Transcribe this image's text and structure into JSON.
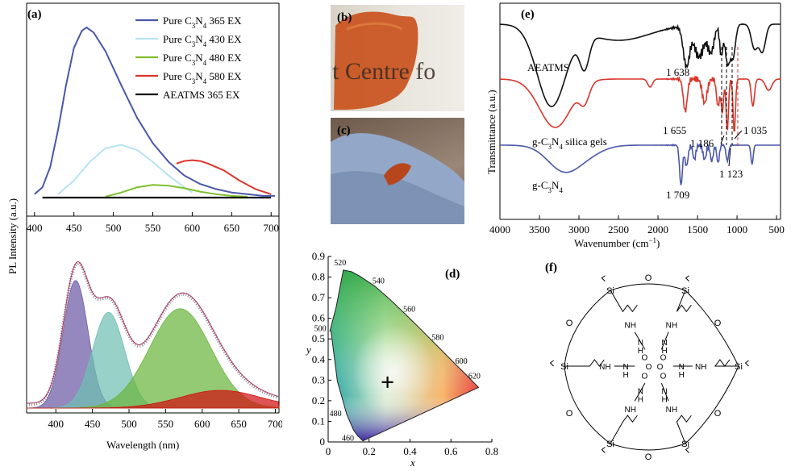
{
  "panel_labels": {
    "a": "(a)",
    "b": "(b)",
    "c": "(c)",
    "d": "(d)",
    "e": "(e)",
    "f": "(f)"
  },
  "colors": {
    "pure365": "#4a57a8",
    "pure430": "#b7e3f2",
    "pure480": "#7fbf2e",
    "pure580": "#d8362b",
    "aeatms": "#111111",
    "fit1": "#6b5aa6",
    "fit2": "#6fbfb3",
    "fit3": "#6ab53d",
    "fit4": "#d11010"
  },
  "photo_b_text": "t Centre fo",
  "chart_data": [
    {
      "id": "a-top",
      "type": "line",
      "ylabel": "PL Intensity (a.u.)",
      "xlim": [
        390,
        710
      ],
      "xticks": [
        "400",
        "450",
        "500",
        "550",
        "600",
        "650",
        "700"
      ],
      "legend_position": "top-right",
      "series": [
        {
          "name": "Pure C3N4 365 EX",
          "name_main": "Pure C",
          "name_sub1": "3",
          "name_mid": "N",
          "name_sub2": "4",
          "name_tail": " 365 EX",
          "color": "#4a57a8",
          "x": [
            400,
            410,
            420,
            430,
            440,
            450,
            460,
            466,
            475,
            490,
            510,
            530,
            550,
            570,
            590,
            610,
            630,
            650,
            670,
            690,
            705
          ],
          "y": [
            0.02,
            0.06,
            0.18,
            0.4,
            0.66,
            0.88,
            0.98,
            1.0,
            0.97,
            0.86,
            0.66,
            0.47,
            0.32,
            0.21,
            0.13,
            0.08,
            0.05,
            0.03,
            0.02,
            0.01,
            0.01
          ]
        },
        {
          "name": "Pure C3N4 430 EX",
          "name_main": "Pure C",
          "name_sub1": "3",
          "name_mid": "N",
          "name_sub2": "4",
          "name_tail": " 430 EX",
          "color": "#b7e3f2",
          "x": [
            430,
            450,
            470,
            490,
            510,
            530,
            550,
            570,
            590,
            600
          ],
          "y": [
            0.02,
            0.1,
            0.21,
            0.29,
            0.31,
            0.28,
            0.21,
            0.13,
            0.06,
            0.03
          ]
        },
        {
          "name": "Pure C3N4 480 EX",
          "name_main": "Pure C",
          "name_sub1": "3",
          "name_mid": "N",
          "name_sub2": "4",
          "name_tail": " 480 EX",
          "color": "#7fbf2e",
          "x": [
            490,
            510,
            530,
            550,
            570,
            590,
            610,
            630,
            650,
            670
          ],
          "y": [
            0.005,
            0.03,
            0.06,
            0.075,
            0.07,
            0.055,
            0.035,
            0.02,
            0.01,
            0.005
          ]
        },
        {
          "name": "Pure C3N4 580 EX",
          "name_main": "Pure C",
          "name_sub1": "3",
          "name_mid": "N",
          "name_sub2": "4",
          "name_tail": " 580 EX",
          "color": "#d8362b",
          "x": [
            580,
            590,
            600,
            610,
            620,
            640,
            660,
            680,
            700
          ],
          "y": [
            0.2,
            0.215,
            0.22,
            0.215,
            0.2,
            0.16,
            0.1,
            0.05,
            0.02
          ]
        },
        {
          "name": "AEATMS 365 EX",
          "name_main": "AEATMS 365 EX",
          "name_sub1": "",
          "name_mid": "",
          "name_sub2": "",
          "name_tail": "",
          "color": "#111111",
          "x": [
            410,
            700
          ],
          "y": [
            0.0,
            0.0
          ]
        }
      ]
    },
    {
      "id": "a-bottom",
      "type": "area",
      "xlabel": "Wavelength (nm)",
      "xlim": [
        360,
        705
      ],
      "xticks": [
        "400",
        "450",
        "500",
        "550",
        "600",
        "650",
        "700"
      ],
      "components": [
        {
          "center": 427,
          "width": 17,
          "height": 0.72,
          "color": "#6b5aa6"
        },
        {
          "center": 472,
          "width": 22,
          "height": 0.54,
          "color": "#6fbfb3"
        },
        {
          "center": 570,
          "width": 42,
          "height": 0.56,
          "color": "#6ab53d"
        },
        {
          "center": 625,
          "width": 55,
          "height": 0.1,
          "color": "#d11010"
        }
      ]
    },
    {
      "id": "d",
      "type": "scatter",
      "xlabel": "x",
      "ylabel": "y",
      "xlim": [
        0,
        0.8
      ],
      "ylim": [
        0,
        0.9
      ],
      "xticks": [
        "0",
        "0.2",
        "0.4",
        "0.6",
        "0.8"
      ],
      "yticks": [
        "0",
        "0.1",
        "0.2",
        "0.3",
        "0.4",
        "0.5",
        "0.6",
        "0.7",
        "0.8",
        "0.9"
      ],
      "wavelength_labels": [
        "460",
        "480",
        "500",
        "520",
        "540",
        "560",
        "580",
        "600",
        "620"
      ],
      "point": {
        "x": 0.29,
        "y": 0.29
      }
    },
    {
      "id": "e",
      "type": "line",
      "xlabel_main": "Wavenumber (cm",
      "xlabel_sup": "−1",
      "xlabel_end": ")",
      "ylabel": "Transmittance (a.u.)",
      "xlim": [
        4000,
        450
      ],
      "xticks": [
        "4000",
        "3500",
        "3000",
        "2500",
        "2000",
        "1500",
        "1000",
        "500"
      ],
      "series": [
        {
          "name": "AEATMS",
          "color": "#111111"
        },
        {
          "name": "g-C3N4 silica gels",
          "label_main": "g-C",
          "label_sub1": "3",
          "label_mid": "N",
          "label_sub2": "4",
          "label_tail": " silica gels",
          "color": "#d8362b"
        },
        {
          "name": "g-C3N4",
          "label_main": "g-C",
          "label_sub1": "3",
          "label_mid": "N",
          "label_sub2": "4",
          "label_tail": "",
          "color": "#4a57a8"
        }
      ],
      "annotations": [
        "1 638",
        "1 655",
        "1 186",
        "1 035",
        "1 123",
        "1 709"
      ]
    }
  ],
  "structure_f": {
    "atoms": [
      "Si",
      "O",
      "NH",
      "H",
      "N",
      "O"
    ]
  }
}
